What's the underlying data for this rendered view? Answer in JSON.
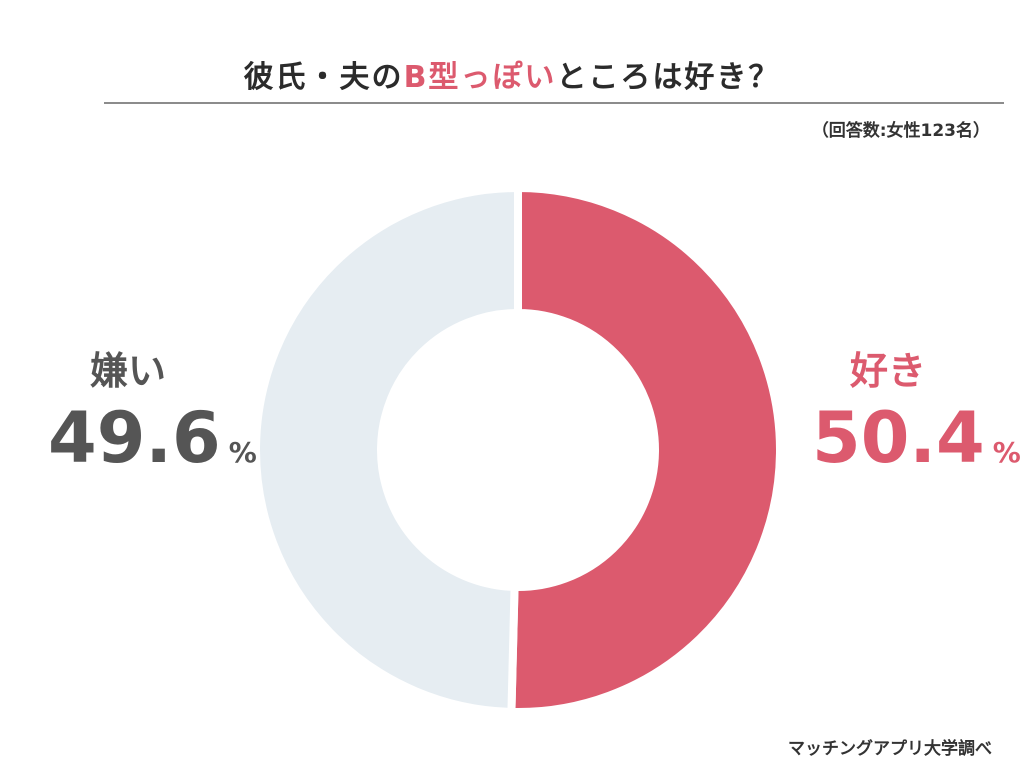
{
  "chart_data": {
    "type": "pie",
    "title_parts": {
      "prefix": "彼氏・夫の",
      "accent": "B型っぽい",
      "suffix": "ところは好き？"
    },
    "note": "（回答数:女性123名）",
    "source": "マッチングアプリ大学調べ",
    "percent_sign": "%",
    "slices": [
      {
        "label": "好き",
        "value": 50.4,
        "value_text": "50.4",
        "color": "#dc5a6e"
      },
      {
        "label": "嫌い",
        "value": 49.6,
        "value_text": "49.6",
        "color": "#e6edf2"
      }
    ]
  }
}
